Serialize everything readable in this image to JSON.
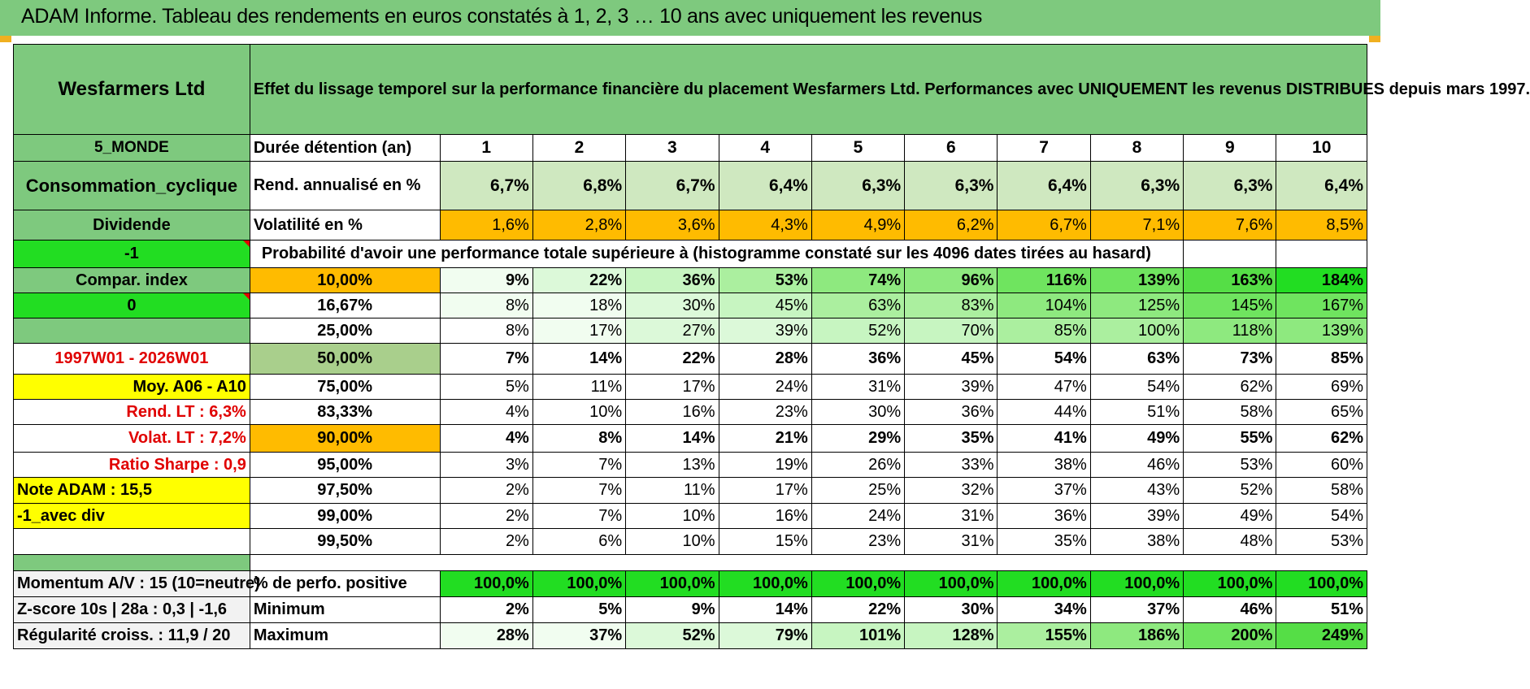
{
  "title": "ADAM Informe. Tableau des rendements en euros constatés à 1, 2, 3 … 10 ans avec uniquement les revenus",
  "company": "Wesfarmers Ltd",
  "description": "Effet du lissage temporel sur la performance financière du placement Wesfarmers Ltd. Performances avec UNIQUEMENT les revenus DISTRIBUES depuis mars 1997.",
  "side": {
    "zone": "5_MONDE",
    "sector": "Consommation_cyclique",
    "type": "Dividende",
    "flag1": "-1",
    "compar": "Compar. index",
    "flag2": "0",
    "period": "1997W01 - 2026W01",
    "moy": "Moy. A06 - A10",
    "rend_lt": "Rend. LT :   6,3%",
    "volat_lt": "Volat. LT :   7,2%",
    "sharpe": "Ratio Sharpe :    0,9",
    "note": "Note ADAM : 15,5",
    "avec_div": "-1_avec div"
  },
  "labels": {
    "duree": "Durée détention (an)",
    "rend": "Rend. annualisé en %",
    "vol": "Volatilité en %",
    "proba": "Probabilité d'avoir une performance totale supérieure à (histogramme constaté sur les 4096 dates tirées au hasard)"
  },
  "years": [
    "1",
    "2",
    "3",
    "4",
    "5",
    "6",
    "7",
    "8",
    "9",
    "10"
  ],
  "rend": [
    "6,7%",
    "6,8%",
    "6,7%",
    "6,4%",
    "6,3%",
    "6,3%",
    "6,4%",
    "6,3%",
    "6,3%",
    "6,4%"
  ],
  "vol": [
    "1,6%",
    "2,8%",
    "3,6%",
    "4,3%",
    "4,9%",
    "6,2%",
    "6,7%",
    "7,1%",
    "7,6%",
    "8,5%"
  ],
  "quantiles": [
    {
      "q": "10,00%",
      "v": [
        "9%",
        "22%",
        "36%",
        "53%",
        "74%",
        "96%",
        "116%",
        "139%",
        "163%",
        "184%"
      ]
    },
    {
      "q": "16,67%",
      "v": [
        "8%",
        "18%",
        "30%",
        "45%",
        "63%",
        "83%",
        "104%",
        "125%",
        "145%",
        "167%"
      ]
    },
    {
      "q": "25,00%",
      "v": [
        "8%",
        "17%",
        "27%",
        "39%",
        "52%",
        "70%",
        "85%",
        "100%",
        "118%",
        "139%"
      ]
    },
    {
      "q": "50,00%",
      "v": [
        "7%",
        "14%",
        "22%",
        "28%",
        "36%",
        "45%",
        "54%",
        "63%",
        "73%",
        "85%"
      ]
    },
    {
      "q": "75,00%",
      "v": [
        "5%",
        "11%",
        "17%",
        "24%",
        "31%",
        "39%",
        "47%",
        "54%",
        "62%",
        "69%"
      ]
    },
    {
      "q": "83,33%",
      "v": [
        "4%",
        "10%",
        "16%",
        "23%",
        "30%",
        "36%",
        "44%",
        "51%",
        "58%",
        "65%"
      ]
    },
    {
      "q": "90,00%",
      "v": [
        "4%",
        "8%",
        "14%",
        "21%",
        "29%",
        "35%",
        "41%",
        "49%",
        "55%",
        "62%"
      ]
    },
    {
      "q": "95,00%",
      "v": [
        "3%",
        "7%",
        "13%",
        "19%",
        "26%",
        "33%",
        "38%",
        "46%",
        "53%",
        "60%"
      ]
    },
    {
      "q": "97,50%",
      "v": [
        "2%",
        "7%",
        "11%",
        "17%",
        "25%",
        "32%",
        "37%",
        "43%",
        "52%",
        "58%"
      ]
    },
    {
      "q": "99,00%",
      "v": [
        "2%",
        "7%",
        "10%",
        "16%",
        "24%",
        "31%",
        "36%",
        "39%",
        "49%",
        "54%"
      ]
    },
    {
      "q": "99,50%",
      "v": [
        "2%",
        "6%",
        "10%",
        "15%",
        "23%",
        "31%",
        "35%",
        "38%",
        "48%",
        "53%"
      ]
    }
  ],
  "bottom": [
    {
      "left": "Momentum A/V : 15 (10=neutre)",
      "label": "% de perfo. positive",
      "v": [
        "100,0%",
        "100,0%",
        "100,0%",
        "100,0%",
        "100,0%",
        "100,0%",
        "100,0%",
        "100,0%",
        "100,0%",
        "100,0%"
      ]
    },
    {
      "left": "Z-score 10s | 28a : 0,3 | -1,6",
      "label": "Minimum",
      "v": [
        "2%",
        "5%",
        "9%",
        "14%",
        "22%",
        "30%",
        "34%",
        "37%",
        "46%",
        "51%"
      ]
    },
    {
      "left": "Régularité croiss. : 11,9 / 20",
      "label": "Maximum",
      "v": [
        "28%",
        "37%",
        "52%",
        "79%",
        "101%",
        "128%",
        "155%",
        "186%",
        "200%",
        "249%"
      ]
    }
  ]
}
